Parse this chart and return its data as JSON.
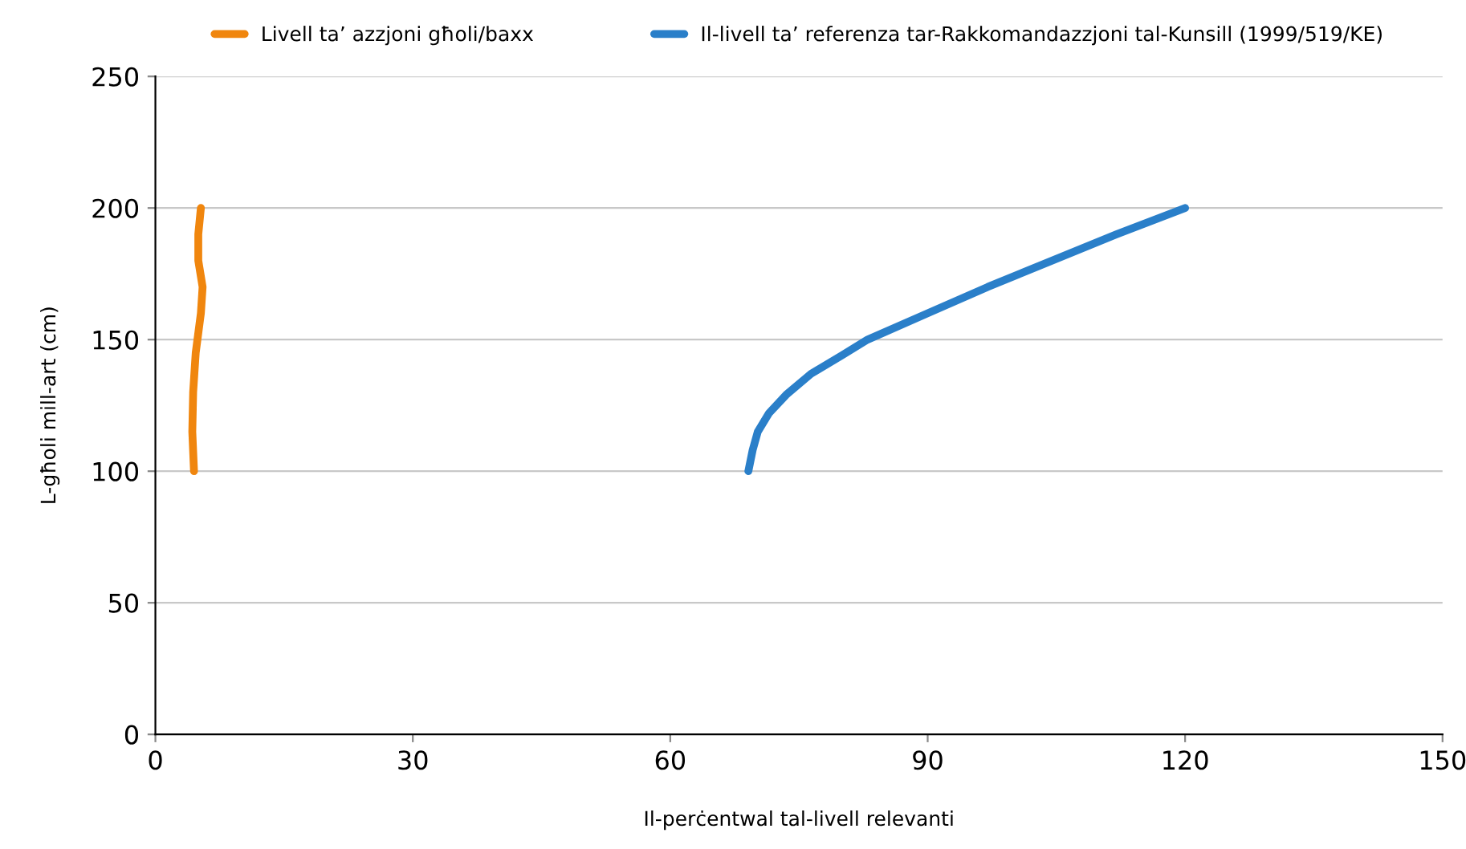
{
  "chart_data": {
    "type": "line",
    "xlabel": "Il-perċentwal tal-livell relevanti",
    "ylabel": "L-għoli mill-art (cm)",
    "series": [
      {
        "name": "Livell ta’ azzjoni għoli/baxx",
        "color": "#f0860e",
        "x": [
          4.5,
          4.3,
          4.4,
          4.7,
          5.3,
          5.5,
          5.0,
          5.0,
          5.3
        ],
        "values": [
          100,
          115,
          130,
          145,
          160,
          170,
          180,
          190,
          200
        ]
      },
      {
        "name": "Il-livell ta’ referenza tar-Rakkomandazzjoni tal-Kunsill (1999/519/KE)",
        "color": "#2a7fc9",
        "x": [
          69.1,
          69.6,
          70.2,
          71.5,
          73.5,
          76.4,
          80.0,
          83.0,
          90.0,
          97.0,
          104.5,
          112.0,
          120.0
        ],
        "values": [
          100,
          108,
          115,
          122,
          129,
          137,
          144,
          150,
          160,
          170,
          180,
          190,
          200
        ]
      }
    ],
    "xlim": [
      0,
      150
    ],
    "xticks": [
      0,
      30,
      60,
      90,
      120,
      150
    ],
    "ylim": [
      0,
      250
    ],
    "yticks": [
      0,
      50,
      100,
      150,
      200,
      250
    ],
    "grid": "y",
    "legend": "top",
    "line_style": "solid",
    "marker": "none"
  }
}
